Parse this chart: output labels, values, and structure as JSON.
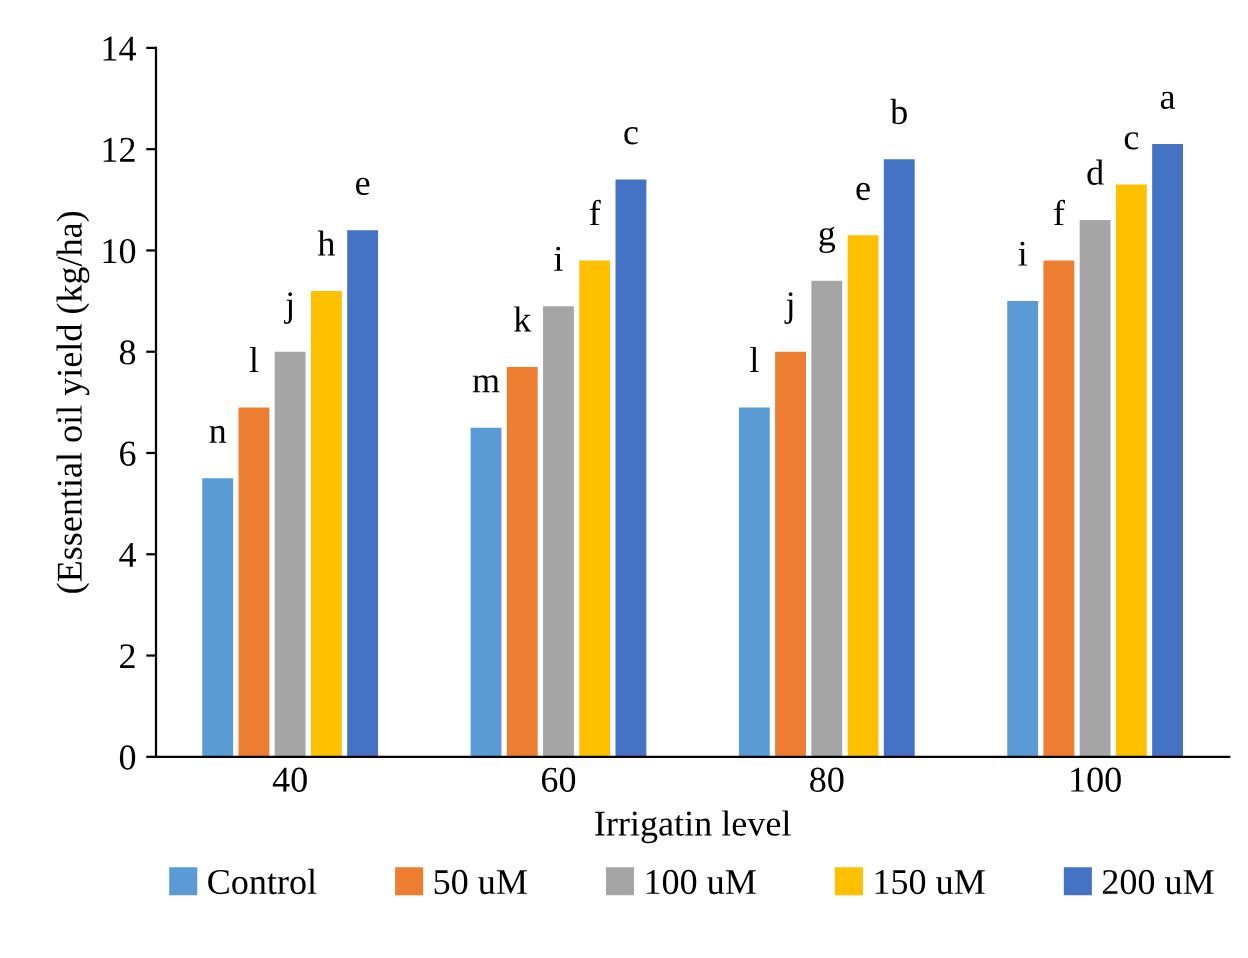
{
  "chart_data": {
    "type": "bar",
    "xlabel": "Irrigatin level",
    "ylabel": "(Essential oil yield (kg/ha)",
    "categories": [
      "40",
      "60",
      "80",
      "100"
    ],
    "ylim": [
      0,
      14
    ],
    "yticks": [
      0,
      2,
      4,
      6,
      8,
      10,
      12,
      14
    ],
    "grid": false,
    "legend": "bottom",
    "series": [
      {
        "name": "Control",
        "color": "#5b9bd5",
        "values": [
          5.5,
          6.5,
          6.9,
          9.0
        ],
        "value_labels": [
          "n",
          "m",
          "l",
          "i"
        ]
      },
      {
        "name": "50 uM",
        "color": "#ed7d31",
        "values": [
          6.9,
          7.7,
          8.0,
          9.8
        ],
        "value_labels": [
          "l",
          "k",
          "j",
          "f"
        ]
      },
      {
        "name": "100 uM",
        "color": "#a5a5a5",
        "values": [
          8.0,
          8.9,
          9.4,
          10.6
        ],
        "value_labels": [
          "j",
          "i",
          "g",
          "d"
        ]
      },
      {
        "name": "150 uM",
        "color": "#ffc000",
        "values": [
          9.2,
          9.8,
          10.3,
          11.3
        ],
        "value_labels": [
          "h",
          "f",
          "e",
          "c"
        ]
      },
      {
        "name": "200 uM",
        "color": "#4472c4",
        "values": [
          10.4,
          11.4,
          11.8,
          12.1
        ],
        "value_labels": [
          "e",
          "c",
          "b",
          "a"
        ]
      }
    ]
  }
}
